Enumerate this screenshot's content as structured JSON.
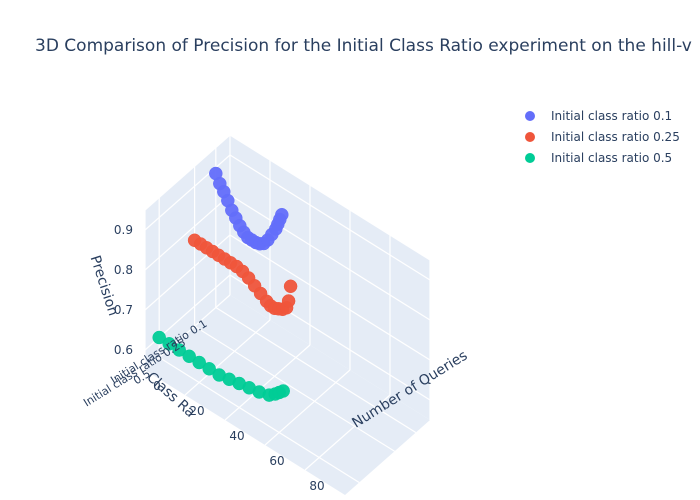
{
  "chart_data": {
    "type": "scatter",
    "title": "3D Comparison of Precision for the Initial Class Ratio experiment on the hill-v",
    "axes": {
      "x": {
        "title": "Number of Queries",
        "ticks": [
          0,
          20,
          40,
          60,
          80
        ],
        "tick_labels": [
          "0",
          "20",
          "40",
          "60",
          "80"
        ]
      },
      "y": {
        "title": "Class Ra",
        "ticks": [
          0.1,
          0.25,
          0.5
        ],
        "tick_labels": [
          "Initial class ratio 0.1",
          "Initial class ratio 0.25",
          "0.5"
        ]
      },
      "z": {
        "title": "Precision",
        "ticks": [
          0.6,
          0.7,
          0.8,
          0.9
        ],
        "tick_labels": [
          "0.6",
          "0.7",
          "0.8",
          "0.9"
        ]
      }
    },
    "grid": true,
    "legend_position": "top-right",
    "series": [
      {
        "name": "Initial class ratio 0.1",
        "color": "#636efa",
        "points": [
          {
            "q": 0,
            "p": 0.885
          },
          {
            "q": 2,
            "p": 0.866
          },
          {
            "q": 4,
            "p": 0.852
          },
          {
            "q": 6,
            "p": 0.836
          },
          {
            "q": 8,
            "p": 0.818
          },
          {
            "q": 10,
            "p": 0.805
          },
          {
            "q": 12,
            "p": 0.792
          },
          {
            "q": 14,
            "p": 0.782
          },
          {
            "q": 16,
            "p": 0.775
          },
          {
            "q": 18,
            "p": 0.775
          },
          {
            "q": 20,
            "p": 0.775
          },
          {
            "q": 22,
            "p": 0.778
          },
          {
            "q": 24,
            "p": 0.785
          },
          {
            "q": 26,
            "p": 0.8
          },
          {
            "q": 28,
            "p": 0.82
          },
          {
            "q": 30,
            "p": 0.84
          },
          {
            "q": 31,
            "p": 0.855
          },
          {
            "q": 32,
            "p": 0.87
          },
          {
            "q": 33,
            "p": 0.885
          }
        ]
      },
      {
        "name": "Initial class ratio 0.25",
        "color": "#ef553b",
        "points": [
          {
            "q": 0,
            "p": 0.765
          },
          {
            "q": 3,
            "p": 0.765
          },
          {
            "q": 6,
            "p": 0.765
          },
          {
            "q": 9,
            "p": 0.765
          },
          {
            "q": 12,
            "p": 0.765
          },
          {
            "q": 15,
            "p": 0.765
          },
          {
            "q": 18,
            "p": 0.765
          },
          {
            "q": 21,
            "p": 0.765
          },
          {
            "q": 24,
            "p": 0.762
          },
          {
            "q": 27,
            "p": 0.755
          },
          {
            "q": 30,
            "p": 0.745
          },
          {
            "q": 33,
            "p": 0.735
          },
          {
            "q": 36,
            "p": 0.725
          },
          {
            "q": 38,
            "p": 0.72
          },
          {
            "q": 40,
            "p": 0.72
          },
          {
            "q": 42,
            "p": 0.725
          },
          {
            "q": 44,
            "p": 0.73
          },
          {
            "q": 46,
            "p": 0.74
          },
          {
            "q": 47,
            "p": 0.76
          },
          {
            "q": 48,
            "p": 0.8
          }
        ]
      },
      {
        "name": "Initial class ratio 0.5",
        "color": "#00cc96",
        "points": [
          {
            "q": 0,
            "p": 0.6
          },
          {
            "q": 5,
            "p": 0.6
          },
          {
            "q": 10,
            "p": 0.6
          },
          {
            "q": 15,
            "p": 0.6
          },
          {
            "q": 20,
            "p": 0.6
          },
          {
            "q": 25,
            "p": 0.6
          },
          {
            "q": 30,
            "p": 0.6
          },
          {
            "q": 35,
            "p": 0.605
          },
          {
            "q": 40,
            "p": 0.61
          },
          {
            "q": 45,
            "p": 0.615
          },
          {
            "q": 50,
            "p": 0.62
          },
          {
            "q": 55,
            "p": 0.628
          },
          {
            "q": 58,
            "p": 0.64
          },
          {
            "q": 60,
            "p": 0.65
          },
          {
            "q": 62,
            "p": 0.66
          }
        ]
      }
    ]
  }
}
